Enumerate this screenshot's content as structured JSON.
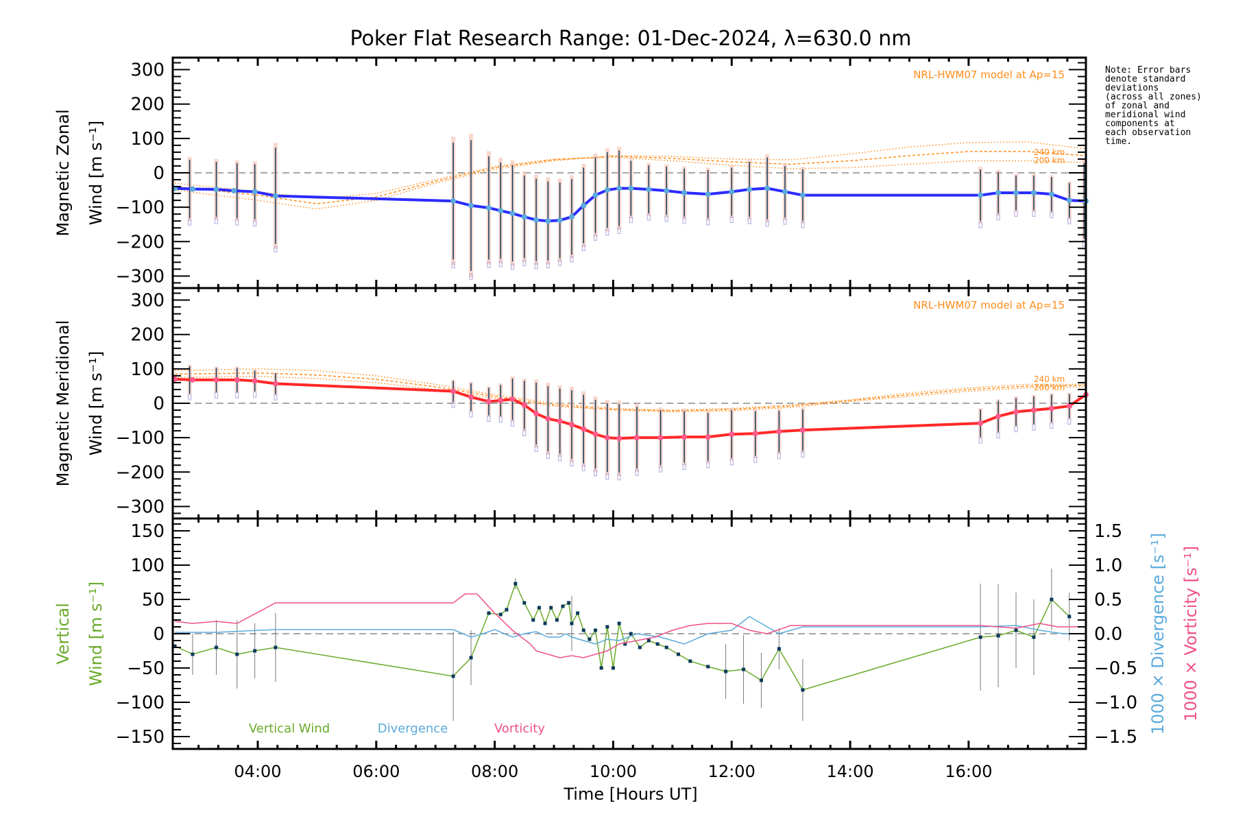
{
  "chart_data": [
    {
      "id": "zonal",
      "type": "line",
      "title": "Poker Flat Research Range: 01-Dec-2024, λ=630.0 nm",
      "ylabel_line1": "Magnetic Zonal",
      "ylabel_line2": "Wind [m s⁻¹]",
      "ylim": [
        -335,
        335
      ],
      "yticks": [
        300,
        200,
        100,
        0,
        -100,
        -200,
        -300
      ],
      "model_label": "NRL-HWM07 model at Ap=15",
      "model_alt_labels": [
        "240 km",
        "200 km"
      ],
      "series": [
        {
          "name": "Mean zonal wind",
          "color": "#2b2bff",
          "x": [
            2.6,
            2.9,
            3.3,
            3.6,
            3.95,
            4.3,
            7.3,
            7.6,
            7.9,
            8.1,
            8.3,
            8.5,
            8.7,
            8.9,
            9.1,
            9.3,
            9.5,
            9.7,
            9.9,
            10.1,
            10.3,
            10.6,
            10.9,
            11.2,
            11.6,
            12.0,
            12.3,
            12.6,
            12.9,
            13.2,
            16.2,
            16.5,
            16.8,
            17.1,
            17.4,
            17.7,
            17.98
          ],
          "y": [
            -45,
            -47,
            -48,
            -52,
            -55,
            -67,
            -82,
            -95,
            -102,
            -110,
            -118,
            -128,
            -137,
            -140,
            -138,
            -128,
            -95,
            -65,
            -50,
            -45,
            -45,
            -48,
            -52,
            -58,
            -62,
            -55,
            -48,
            -45,
            -55,
            -65,
            -65,
            -58,
            -58,
            -58,
            -62,
            -80,
            -82
          ]
        },
        {
          "name": "HWM07 model 240 km",
          "color": "#ff8c1a",
          "style": "dotted",
          "x": [
            2.6,
            4,
            5,
            6,
            7,
            8,
            9,
            10,
            11,
            12,
            13,
            14,
            15,
            16,
            17,
            17.98
          ],
          "y": [
            -50,
            -80,
            -105,
            -80,
            -30,
            10,
            35,
            50,
            48,
            40,
            38,
            55,
            75,
            88,
            90,
            70
          ]
        },
        {
          "name": "HWM07 model 200 km",
          "color": "#ff8c1a",
          "style": "dashed",
          "x": [
            2.6,
            4,
            5,
            6,
            7,
            8,
            9,
            10,
            11,
            12,
            13,
            14,
            15,
            16,
            17,
            17.98
          ],
          "y": [
            -40,
            -65,
            -90,
            -70,
            -25,
            15,
            38,
            48,
            42,
            32,
            25,
            35,
            50,
            62,
            62,
            50
          ]
        },
        {
          "name": "HWM07 model low",
          "color": "#ff8c1a",
          "style": "dotted",
          "x": [
            2.6,
            4,
            5,
            6,
            7,
            8,
            9,
            10,
            11,
            12,
            13,
            14,
            15,
            16,
            17,
            17.98
          ],
          "y": [
            -30,
            -55,
            -75,
            -60,
            -20,
            18,
            40,
            45,
            35,
            22,
            12,
            15,
            25,
            35,
            35,
            30
          ]
        }
      ],
      "errorbars": {
        "x": [
          2.85,
          3.3,
          3.65,
          3.95,
          4.3,
          7.3,
          7.6,
          7.9,
          8.1,
          8.3,
          8.5,
          8.7,
          8.9,
          9.1,
          9.3,
          9.5,
          9.7,
          9.9,
          10.1,
          10.3,
          10.6,
          10.9,
          11.2,
          11.6,
          12.0,
          12.3,
          12.6,
          12.9,
          13.2,
          16.2,
          16.5,
          16.8,
          17.1,
          17.4,
          17.7,
          17.95
        ],
        "y": [
          -47,
          -48,
          -52,
          -55,
          -67,
          -82,
          -95,
          -102,
          -110,
          -118,
          -128,
          -137,
          -140,
          -138,
          -128,
          -95,
          -65,
          -50,
          -45,
          -45,
          -48,
          -52,
          -58,
          -62,
          -55,
          -48,
          -45,
          -55,
          -65,
          -65,
          -58,
          -58,
          -58,
          -62,
          -80,
          -82
        ],
        "sd": [
          85,
          80,
          80,
          80,
          140,
          170,
          190,
          150,
          140,
          140,
          120,
          120,
          115,
          110,
          110,
          110,
          110,
          110,
          110,
          80,
          70,
          70,
          70,
          70,
          70,
          80,
          90,
          75,
          75,
          75,
          60,
          50,
          50,
          50,
          50,
          110
        ]
      }
    },
    {
      "id": "meridional",
      "type": "line",
      "ylabel_line1": "Magnetic Meridional",
      "ylabel_line2": "Wind [m s⁻¹]",
      "ylim": [
        -335,
        335
      ],
      "yticks": [
        300,
        200,
        100,
        0,
        -100,
        -200,
        -300
      ],
      "model_label": "NRL-HWM07 model at Ap=15",
      "model_alt_labels": [
        "240 km",
        "200 km"
      ],
      "series": [
        {
          "name": "Mean meridional wind",
          "color": "#ff2828",
          "x": [
            2.6,
            2.9,
            3.3,
            3.65,
            3.95,
            4.3,
            7.3,
            7.6,
            7.9,
            8.1,
            8.3,
            8.5,
            8.7,
            8.9,
            9.1,
            9.3,
            9.5,
            9.7,
            9.9,
            10.1,
            10.4,
            10.8,
            11.2,
            11.6,
            12.0,
            12.4,
            12.8,
            13.2,
            16.2,
            16.5,
            16.8,
            17.1,
            17.4,
            17.7,
            17.98
          ],
          "y": [
            70,
            68,
            68,
            68,
            65,
            57,
            35,
            18,
            5,
            8,
            12,
            -5,
            -30,
            -45,
            -52,
            -62,
            -75,
            -90,
            -100,
            -102,
            -100,
            -100,
            -98,
            -98,
            -90,
            -88,
            -82,
            -78,
            -58,
            -38,
            -25,
            -20,
            -15,
            -8,
            25
          ]
        },
        {
          "name": "HWM07 model 240 km",
          "color": "#ff8c1a",
          "style": "dotted",
          "x": [
            2.6,
            4,
            5,
            6,
            7,
            8,
            9,
            10,
            11,
            12,
            13,
            14,
            15,
            16,
            17,
            17.98
          ],
          "y": [
            95,
            100,
            95,
            80,
            55,
            25,
            0,
            -15,
            -20,
            -15,
            -5,
            10,
            30,
            45,
            55,
            55
          ]
        },
        {
          "name": "HWM07 model 200 km",
          "color": "#ff8c1a",
          "style": "dashed",
          "x": [
            2.6,
            4,
            5,
            6,
            7,
            8,
            9,
            10,
            11,
            12,
            13,
            14,
            15,
            16,
            17,
            17.98
          ],
          "y": [
            85,
            88,
            82,
            70,
            48,
            20,
            -5,
            -18,
            -22,
            -18,
            -8,
            8,
            25,
            40,
            50,
            52
          ]
        },
        {
          "name": "HWM07 model low",
          "color": "#ff8c1a",
          "style": "dotted",
          "x": [
            2.6,
            4,
            5,
            6,
            7,
            8,
            9,
            10,
            11,
            12,
            13,
            14,
            15,
            16,
            17,
            17.98
          ],
          "y": [
            75,
            78,
            72,
            60,
            40,
            15,
            -8,
            -20,
            -25,
            -22,
            -12,
            5,
            20,
            35,
            45,
            48
          ]
        }
      ],
      "errorbars": {
        "x": [
          2.85,
          3.3,
          3.65,
          3.95,
          4.3,
          7.3,
          7.6,
          7.9,
          8.1,
          8.3,
          8.5,
          8.7,
          8.9,
          9.1,
          9.3,
          9.5,
          9.7,
          9.9,
          10.1,
          10.4,
          10.8,
          11.2,
          11.6,
          12.0,
          12.4,
          12.8,
          13.2,
          16.2,
          16.5,
          16.8,
          17.1,
          17.4,
          17.7
        ],
        "y": [
          68,
          68,
          68,
          65,
          57,
          35,
          18,
          5,
          8,
          12,
          -5,
          -30,
          -45,
          -52,
          -62,
          -75,
          -90,
          -100,
          -102,
          -100,
          -100,
          -98,
          -98,
          -90,
          -88,
          -82,
          -78,
          -58,
          -38,
          -25,
          -20,
          -15,
          -8
        ],
        "sd": [
          40,
          35,
          35,
          30,
          30,
          30,
          40,
          40,
          45,
          60,
          70,
          90,
          95,
          95,
          100,
          100,
          100,
          100,
          100,
          90,
          80,
          75,
          70,
          70,
          65,
          60,
          60,
          40,
          45,
          40,
          40,
          40,
          35
        ]
      }
    },
    {
      "id": "vertical",
      "type": "line",
      "xlabel": "Time [Hours UT]",
      "ylabel_line1": "Vertical",
      "ylabel_line2": "Wind [m s⁻¹]",
      "ylabel_right1": "1000 × Divergence [s⁻¹]",
      "ylabel_right2": "1000 × Vorticity [s⁻¹]",
      "xlim": [
        2.565,
        17.98
      ],
      "xticks": [
        "04:00",
        "06:00",
        "08:00",
        "10:00",
        "12:00",
        "14:00",
        "16:00"
      ],
      "xtick_values": [
        4,
        6,
        8,
        10,
        12,
        14,
        16
      ],
      "ylim": [
        -168,
        168
      ],
      "yticks": [
        150,
        100,
        50,
        0,
        -50,
        -100,
        -150
      ],
      "ylim_right": [
        -1.68,
        1.68
      ],
      "yticks_right": [
        "1.5",
        "1.0",
        "0.5",
        "0.0",
        "-0.5",
        "-1.0",
        "-1.5"
      ],
      "yticks_right_values": [
        1.5,
        1.0,
        0.5,
        0.0,
        -0.5,
        -1.0,
        -1.5
      ],
      "legend": [
        {
          "label": "Vertical Wind",
          "color": "#6aaa2a"
        },
        {
          "label": "Divergence",
          "color": "#5aaadc"
        },
        {
          "label": "Vorticity",
          "color": "#f0508a"
        }
      ],
      "series": [
        {
          "name": "Vertical Wind",
          "color": "#6aaa2a",
          "axis": "left",
          "x": [
            2.6,
            2.9,
            3.3,
            3.65,
            3.95,
            4.3,
            7.3,
            7.6,
            7.9,
            8.1,
            8.2,
            8.35,
            8.5,
            8.65,
            8.75,
            8.85,
            8.95,
            9.05,
            9.15,
            9.25,
            9.3,
            9.4,
            9.5,
            9.6,
            9.7,
            9.8,
            9.9,
            10.0,
            10.1,
            10.2,
            10.3,
            10.45,
            10.6,
            10.75,
            10.9,
            11.1,
            11.3,
            11.6,
            11.9,
            12.2,
            12.5,
            12.8,
            13.2,
            16.2,
            16.5,
            16.8,
            17.1,
            17.4,
            17.7
          ],
          "y": [
            -18,
            -30,
            -20,
            -30,
            -25,
            -20,
            -62,
            -35,
            30,
            28,
            35,
            73,
            45,
            20,
            38,
            15,
            38,
            20,
            40,
            45,
            15,
            30,
            5,
            -8,
            5,
            -50,
            10,
            -50,
            15,
            -15,
            0,
            -20,
            -10,
            -15,
            -20,
            -30,
            -40,
            -48,
            -55,
            -52,
            -68,
            -22,
            -82,
            -5,
            -3,
            5,
            -5,
            50,
            25
          ]
        },
        {
          "name": "Divergence",
          "color": "#5aaadc",
          "axis": "right",
          "x": [
            2.6,
            3.3,
            4.3,
            7.3,
            7.6,
            7.8,
            8.0,
            8.3,
            8.5,
            8.7,
            8.9,
            9.1,
            9.2,
            9.3,
            9.5,
            9.7,
            9.9,
            10.1,
            10.4,
            10.8,
            11.2,
            11.6,
            12.0,
            12.3,
            12.6,
            12.8,
            13.2,
            16.2,
            16.8,
            17.2,
            17.6,
            17.98
          ],
          "y": [
            0.02,
            0.02,
            0.06,
            0.06,
            -0.05,
            0.0,
            0.06,
            -0.05,
            0.0,
            0.03,
            -0.05,
            -0.05,
            0.0,
            -0.05,
            -0.1,
            -0.15,
            -0.08,
            -0.1,
            0.0,
            -0.05,
            -0.15,
            0.0,
            0.05,
            0.25,
            0.1,
            0.0,
            0.1,
            0.1,
            0.12,
            0.05,
            0.0,
            0.0
          ]
        },
        {
          "name": "Vorticity",
          "color": "#f0508a",
          "axis": "right",
          "x": [
            2.6,
            2.9,
            3.3,
            3.65,
            4.3,
            7.3,
            7.5,
            7.7,
            8.0,
            8.3,
            8.6,
            8.7,
            8.9,
            9.1,
            9.3,
            9.5,
            9.7,
            9.9,
            10.1,
            10.4,
            10.7,
            11.0,
            11.3,
            11.6,
            12.0,
            12.3,
            12.6,
            13.0,
            16.2,
            16.8,
            17.2,
            17.5,
            17.98
          ],
          "y": [
            0.18,
            0.15,
            0.18,
            0.15,
            0.45,
            0.45,
            0.58,
            0.58,
            0.3,
            0.05,
            -0.15,
            -0.25,
            -0.3,
            -0.35,
            -0.32,
            -0.35,
            -0.3,
            -0.25,
            -0.15,
            -0.1,
            -0.05,
            0.05,
            0.12,
            0.15,
            0.15,
            0.05,
            0.0,
            0.12,
            0.12,
            0.08,
            0.15,
            0.1,
            0.1
          ]
        }
      ],
      "errorbars": {
        "x": [
          2.9,
          3.3,
          3.65,
          3.95,
          4.3,
          7.3,
          7.6,
          8.35,
          9.3,
          16.2,
          16.5,
          16.8,
          17.1,
          17.4,
          17.7,
          11.9,
          12.2,
          12.5,
          12.8,
          13.2
        ],
        "y": [
          -30,
          -20,
          -30,
          -25,
          -20,
          -62,
          -35,
          73,
          15,
          -5,
          -3,
          5,
          -5,
          50,
          25,
          -55,
          -52,
          -68,
          -22,
          -82
        ],
        "sd": [
          30,
          40,
          50,
          40,
          50,
          65,
          40,
          8,
          40,
          78,
          75,
          55,
          55,
          45,
          35,
          40,
          50,
          40,
          30,
          45
        ]
      }
    }
  ],
  "note": "Note: Error bars\ndenote standard\ndeviations\n(across all zones)\nof zonal and\nmeridional wind\ncomponents at\neach observation\ntime."
}
